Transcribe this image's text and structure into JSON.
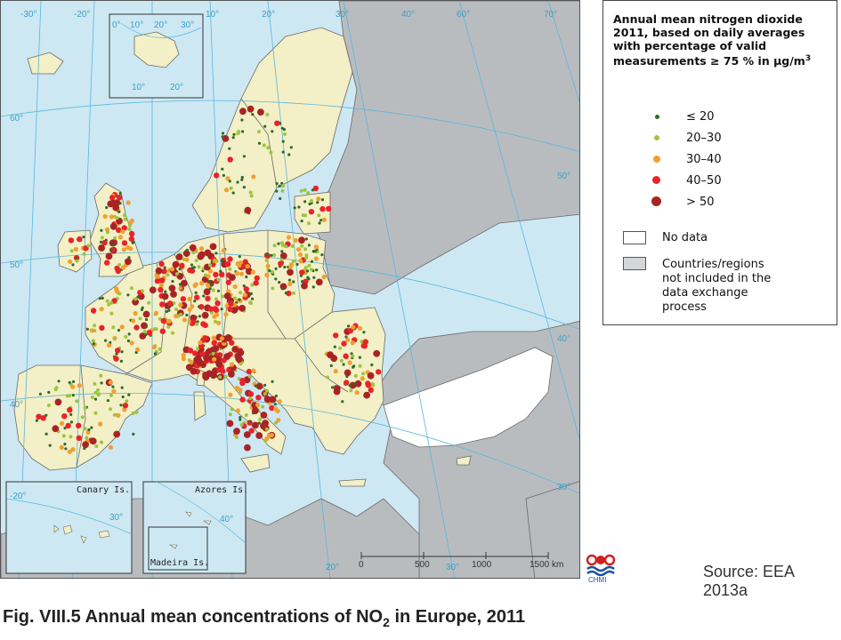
{
  "map": {
    "graticule_labels": {
      "lon_top": [
        "-30°",
        "-20°",
        "10°",
        "20°",
        "30°",
        "40°",
        "60°",
        "70°"
      ],
      "lat_left": [
        "60°",
        "50°",
        "40°"
      ],
      "lat_right": [
        "50°",
        "40°",
        "30°"
      ],
      "bottom": [
        "20°",
        "30°"
      ]
    },
    "inset_svalbard": {
      "top": [
        "0°",
        "10°",
        "20°",
        "30°"
      ],
      "bottom": [
        "10°",
        "20°"
      ]
    },
    "inset_canary": {
      "label": "Canary Is.",
      "deg_left": "-20°",
      "deg_right": "30°"
    },
    "inset_azores": {
      "label": "Azores Is.",
      "deg": "40°"
    },
    "inset_madeira": {
      "label": "Madeira Is."
    },
    "scale": {
      "ticks": [
        "0",
        "500",
        "1000",
        "1500 km"
      ]
    },
    "colors": {
      "sea": "#cde8f3",
      "land_included": "#f3efc6",
      "land_excluded": "#b9bcbf",
      "no_data": "#ffffff",
      "border": "#5a5a5a",
      "graticule": "#58b7dd"
    }
  },
  "legend": {
    "title": "Annual mean nitrogen dioxide 2011, based on daily averages with percentage of valid measurements  ≥ 75 % in μg/m",
    "title_sup": "3",
    "classes": [
      {
        "label": "≤ 20",
        "color": "#2e6b2a"
      },
      {
        "label": "20–30",
        "color": "#9bc53d"
      },
      {
        "label": "30–40",
        "color": "#f0a030"
      },
      {
        "label": "40–50",
        "color": "#e8232a"
      },
      {
        "label": "> 50",
        "color": "#a82424"
      }
    ],
    "no_data": "No data",
    "excluded": "Countries/regions not included in the data exchange process"
  },
  "logo_text": "CHMI",
  "source": "Source: EEA 2013a",
  "caption": {
    "prefix": "Fig. VIII.5  Annual mean concentrations of NO",
    "sub": "2",
    "suffix": " in Europe, 2011"
  }
}
